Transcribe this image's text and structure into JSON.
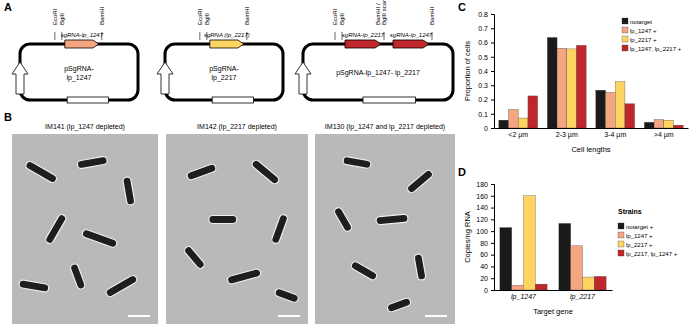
{
  "panel_labels": [
    "A",
    "B",
    "C",
    "D"
  ],
  "plasmids": [
    {
      "name": [
        "pSgRNA-",
        "lp_1247"
      ],
      "sites": [
        [
          "EcoRI"
        ],
        [
          "BglII"
        ],
        [
          "BamHI"
        ]
      ],
      "inserts": [
        {
          "label": "sgRNA-lp_1247",
          "color": "#f4a582"
        }
      ]
    },
    {
      "name": [
        "pSgRNA-",
        "lp_2217"
      ],
      "sites": [
        [
          "EcoRI"
        ],
        [
          "BglII"
        ],
        [
          "BamHI"
        ]
      ],
      "inserts": [
        {
          "label": "sgRNA (lp_2217)",
          "color": "#fdd462"
        }
      ]
    },
    {
      "name": [
        "pSgRNA-lp_1247- lp_2217"
      ],
      "sites": [
        [
          "EcoRI"
        ],
        [
          "BglII"
        ],
        [
          "BamHI /",
          "BglII scar"
        ],
        [
          "BamHI"
        ]
      ],
      "inserts": [
        {
          "label": "sgRNA-lp_2217",
          "color": "#c0272d"
        },
        {
          "label": "sgRNA-lp_1247",
          "color": "#c0272d"
        }
      ]
    }
  ],
  "micrographs": [
    "IM141 (lp_1247 depleted)",
    "IM142 (lp_2217 depleted)",
    "IM130 (lp_1247 and lp_2217 depleted)"
  ],
  "chart_data": [
    {
      "type": "bar",
      "x_label": "Cell lengths",
      "y_label": "Proportion of cells",
      "categories": [
        "<2 µm",
        "2-3 µm",
        "3-4 µm",
        ">4 µm"
      ],
      "series": [
        {
          "name": "notarget",
          "color": "#1a1a1a",
          "values": [
            0.055,
            0.635,
            0.265,
            0.04
          ]
        },
        {
          "name": "lp_1247 +",
          "color": "#f4a582",
          "values": [
            0.13,
            0.56,
            0.25,
            0.06
          ]
        },
        {
          "name": "lp_2217 +",
          "color": "#fdd462",
          "values": [
            0.07,
            0.555,
            0.325,
            0.055
          ]
        },
        {
          "name": "lp_1247, lp_2217 +",
          "color": "#c0272d",
          "values": [
            0.225,
            0.58,
            0.17,
            0.02
          ]
        }
      ],
      "ylim": [
        0,
        0.8
      ],
      "yticks": [
        0,
        0.1,
        0.2,
        0.3,
        0.4,
        0.5,
        0.6,
        0.7,
        0.8
      ],
      "legend": "top-right"
    },
    {
      "type": "bar",
      "x_label": "Target gene",
      "y_label": "Copies/ng RNA",
      "legend_title": "Strains",
      "categories": [
        "lp_1247",
        "lp_2217"
      ],
      "series": [
        {
          "name": "notarget +",
          "color": "#1a1a1a",
          "values": [
            106,
            113
          ]
        },
        {
          "name": "lp_1247 +",
          "color": "#f4a582",
          "values": [
            8,
            75
          ]
        },
        {
          "name": "lp_2217 +",
          "color": "#fdd462",
          "values": [
            160,
            22
          ]
        },
        {
          "name": "lp_2217, lp_1247 +",
          "color": "#c0272d",
          "values": [
            10,
            23
          ]
        }
      ],
      "ylim": [
        0,
        180
      ],
      "yticks": [
        0,
        20,
        40,
        60,
        80,
        100,
        120,
        140,
        160,
        180
      ],
      "legend": "right"
    }
  ]
}
